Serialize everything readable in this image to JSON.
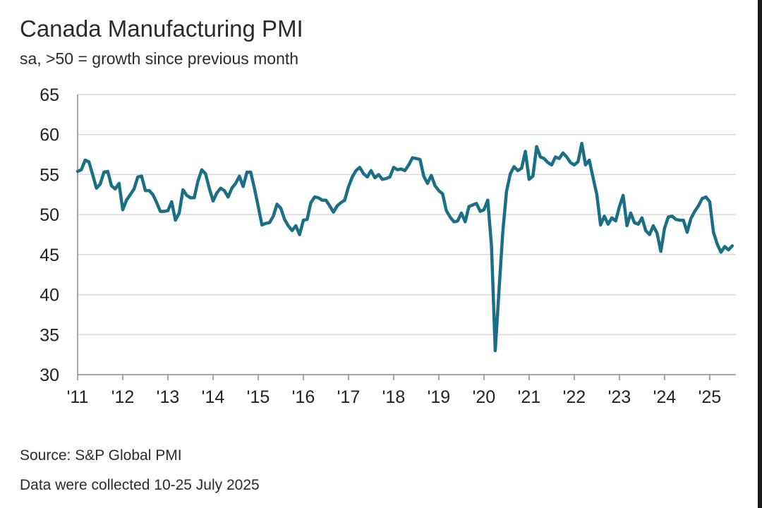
{
  "title": "Canada Manufacturing PMI",
  "subtitle": "sa, >50 = growth since previous month",
  "source": "Source: S&P Global PMI",
  "collected": "Data were collected 10-25 July 2025",
  "colors": {
    "line": "#1a6f87",
    "grid": "#d9d9d9",
    "axis": "#8a8a8a"
  },
  "chart_data": {
    "type": "line",
    "title": "Canada Manufacturing PMI",
    "subtitle": "sa, >50 = growth since previous month",
    "xlabel": "",
    "ylabel": "",
    "ylim": [
      30,
      65
    ],
    "yticks": [
      30,
      35,
      40,
      45,
      50,
      55,
      60,
      65
    ],
    "xlim": [
      2011.0,
      2025.58
    ],
    "xticks": [
      {
        "label": "'11",
        "value": 2011
      },
      {
        "label": "'12",
        "value": 2012
      },
      {
        "label": "'13",
        "value": 2013
      },
      {
        "label": "'14",
        "value": 2014
      },
      {
        "label": "'15",
        "value": 2015
      },
      {
        "label": "'16",
        "value": 2016
      },
      {
        "label": "'17",
        "value": 2017
      },
      {
        "label": "'18",
        "value": 2018
      },
      {
        "label": "'19",
        "value": 2019
      },
      {
        "label": "'20",
        "value": 2020
      },
      {
        "label": "'21",
        "value": 2021
      },
      {
        "label": "'22",
        "value": 2022
      },
      {
        "label": "'23",
        "value": 2023
      },
      {
        "label": "'24",
        "value": 2024
      },
      {
        "label": "'25",
        "value": 2025
      }
    ],
    "grid": true,
    "legend": "none",
    "series": [
      {
        "x_start": "2011-01",
        "frequency": "monthly",
        "values": [
          55.4,
          55.6,
          56.8,
          56.6,
          55.0,
          53.3,
          53.8,
          55.3,
          55.4,
          53.6,
          53.2,
          53.9,
          50.6,
          51.8,
          52.5,
          53.2,
          54.7,
          54.8,
          53.0,
          53.0,
          52.5,
          51.5,
          50.4,
          50.4,
          50.5,
          51.6,
          49.3,
          50.2,
          53.1,
          52.4,
          52.1,
          52.1,
          54.2,
          55.6,
          55.1,
          53.3,
          51.7,
          52.7,
          53.3,
          53.0,
          52.2,
          53.3,
          53.9,
          54.8,
          53.5,
          55.3,
          55.3,
          53.3,
          51.0,
          48.7,
          48.9,
          49.0,
          49.8,
          51.3,
          50.8,
          49.4,
          48.6,
          48.0,
          48.6,
          47.5,
          49.3,
          49.4,
          51.5,
          52.2,
          52.1,
          51.8,
          51.8,
          51.1,
          50.3,
          51.1,
          51.5,
          51.8,
          53.5,
          54.7,
          55.5,
          55.9,
          55.1,
          54.7,
          55.5,
          54.6,
          55.0,
          54.4,
          54.5,
          54.7,
          55.9,
          55.6,
          55.7,
          55.5,
          56.2,
          57.1,
          57.0,
          56.9,
          54.8,
          53.9,
          54.9,
          53.6,
          53.0,
          52.6,
          50.5,
          49.7,
          49.1,
          49.2,
          50.2,
          49.1,
          51.0,
          51.2,
          51.4,
          50.4,
          50.6,
          51.8,
          46.1,
          33.0,
          40.6,
          47.8,
          52.9,
          55.1,
          56.0,
          55.5,
          55.8,
          57.9,
          54.4,
          54.8,
          58.5,
          57.2,
          57.0,
          56.5,
          56.2,
          57.2,
          57.0,
          57.7,
          57.2,
          56.5,
          56.2,
          56.6,
          58.9,
          56.2,
          56.8,
          54.6,
          52.5,
          48.7,
          49.8,
          48.8,
          49.6,
          49.2,
          51.0,
          52.4,
          48.6,
          50.2,
          49.0,
          48.8,
          49.6,
          48.0,
          47.5,
          48.6,
          47.7,
          45.4,
          48.3,
          49.7,
          49.8,
          49.4,
          49.3,
          49.3,
          47.8,
          49.5,
          50.4,
          51.1,
          52.0,
          52.2,
          51.6,
          47.8,
          46.3,
          45.3,
          46.0,
          45.6,
          46.1
        ]
      }
    ]
  }
}
